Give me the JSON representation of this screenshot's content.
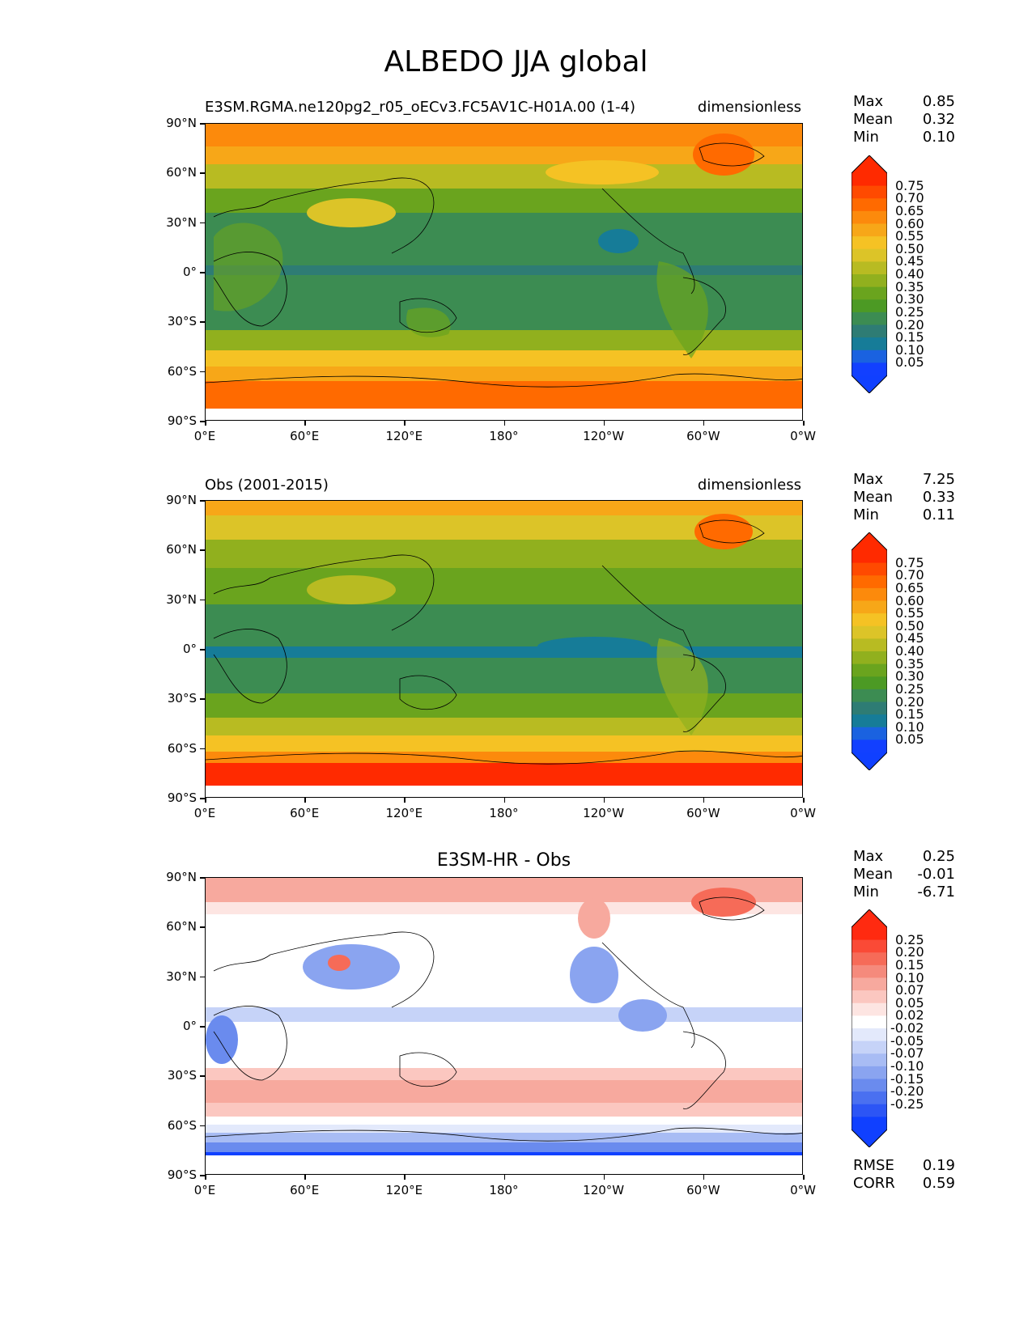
{
  "title": "ALBEDO JJA global",
  "lat_ticks": [
    "90°N",
    "60°N",
    "30°N",
    "0°",
    "30°S",
    "60°S",
    "90°S"
  ],
  "lon_ticks": [
    "0°E",
    "60°E",
    "120°E",
    "180°",
    "120°W",
    "60°W",
    "0°W"
  ],
  "panels": [
    {
      "id": "model",
      "left_title": "E3SM.RGMA.ne120pg2_r05_oECv3.FC5AV1C-H01A.00 (1-4)",
      "center_title": "",
      "right_title": "dimensionless",
      "stats": [
        {
          "label": "Max",
          "value": "0.85"
        },
        {
          "label": "Mean",
          "value": "0.32"
        },
        {
          "label": "Min",
          "value": "0.10"
        }
      ],
      "colorbar_labels": [
        "0.75",
        "0.70",
        "0.65",
        "0.60",
        "0.55",
        "0.50",
        "0.45",
        "0.40",
        "0.35",
        "0.30",
        "0.25",
        "0.20",
        "0.15",
        "0.10",
        "0.05"
      ],
      "colorbar_colors": [
        "#ff2a00",
        "#ff4a00",
        "#ff6a00",
        "#fc8a0c",
        "#f7a718",
        "#f5c224",
        "#dcc428",
        "#b8bb22",
        "#91b01e",
        "#6aa41e",
        "#4c9a24",
        "#3c8c52",
        "#2e7c74",
        "#167c98",
        "#1a62e0",
        "#1240ff"
      ],
      "colorbar_top": "#ff2a00",
      "colorbar_bottom": "#1040ff"
    },
    {
      "id": "obs",
      "left_title": "Obs (2001-2015)",
      "center_title": "",
      "right_title": "dimensionless",
      "stats": [
        {
          "label": "Max",
          "value": "7.25"
        },
        {
          "label": "Mean",
          "value": "0.33"
        },
        {
          "label": "Min",
          "value": "0.11"
        }
      ],
      "colorbar_labels": [
        "0.75",
        "0.70",
        "0.65",
        "0.60",
        "0.55",
        "0.50",
        "0.45",
        "0.40",
        "0.35",
        "0.30",
        "0.25",
        "0.20",
        "0.15",
        "0.10",
        "0.05"
      ],
      "colorbar_colors": [
        "#ff2a00",
        "#ff4a00",
        "#ff6a00",
        "#fc8a0c",
        "#f7a718",
        "#f5c224",
        "#dcc428",
        "#b8bb22",
        "#91b01e",
        "#6aa41e",
        "#4c9a24",
        "#3c8c52",
        "#2e7c74",
        "#167c98",
        "#1a62e0",
        "#1240ff"
      ],
      "colorbar_top": "#ff2a00",
      "colorbar_bottom": "#1040ff"
    },
    {
      "id": "diff",
      "left_title": "",
      "center_title": "E3SM-HR - Obs",
      "right_title": "",
      "stats": [
        {
          "label": "Max",
          "value": "0.25"
        },
        {
          "label": "Mean",
          "value": "-0.01"
        },
        {
          "label": "Min",
          "value": "-6.71"
        }
      ],
      "colorbar_labels": [
        "0.25",
        "0.20",
        "0.15",
        "0.10",
        "0.07",
        "0.05",
        "0.02",
        "-0.02",
        "-0.05",
        "-0.07",
        "-0.10",
        "-0.15",
        "-0.20",
        "-0.25"
      ],
      "colorbar_colors": [
        "#ff2a10",
        "#fa4a36",
        "#f66b58",
        "#f58a7c",
        "#f7a99e",
        "#fbc7c0",
        "#fde5e2",
        "#ffffff",
        "#e3e9fb",
        "#c6d3f8",
        "#a8bcf4",
        "#8aa4f0",
        "#6a8bee",
        "#4a70f0",
        "#2c55f5",
        "#1040ff"
      ],
      "colorbar_top": "#ff2a10",
      "colorbar_bottom": "#1040ff",
      "extra_stats": [
        {
          "label": "RMSE",
          "value": "0.19"
        },
        {
          "label": "CORR",
          "value": "0.59"
        }
      ]
    }
  ]
}
